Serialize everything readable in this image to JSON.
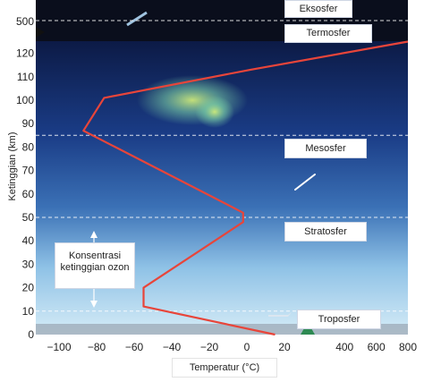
{
  "chart_data": {
    "type": "line",
    "xlabel": "Temperatur (°C)",
    "ylabel": "Ketinggian (km)",
    "x_ticks_primary": [
      "−100",
      "−80",
      "−60",
      "−40",
      "−20",
      "0",
      "20"
    ],
    "x_ticks_secondary": [
      "400",
      "600",
      "800"
    ],
    "y_ticks": [
      "0",
      "10",
      "20",
      "30",
      "40",
      "50",
      "60",
      "70",
      "80",
      "90",
      "100",
      "110",
      "120",
      "500"
    ],
    "temperature_profile": {
      "x_temperature_c": [
        15,
        -55,
        -55,
        -2,
        -2,
        -87,
        -76,
        2,
        800
      ],
      "y_altitude_km": [
        0,
        12,
        20,
        48,
        52,
        87,
        101,
        113,
        125
      ]
    },
    "layer_boundaries_km": [
      10,
      50,
      85,
      500
    ],
    "layers": {
      "eksosfer": "Eksosfer",
      "termosfer": "Termosfer",
      "mesosfer": "Mesosfer",
      "stratosfer": "Stratosfer",
      "troposfer": "Troposfer"
    },
    "ozone_label": "Konsentrasi ketinggian ozon",
    "ozone_range_km": [
      10,
      50
    ],
    "colors": {
      "profile_line": "#e8453a",
      "sky_top": "#0b1d4a",
      "sky_bottom": "#cfe7f5",
      "boundary": "#ffffff"
    }
  }
}
